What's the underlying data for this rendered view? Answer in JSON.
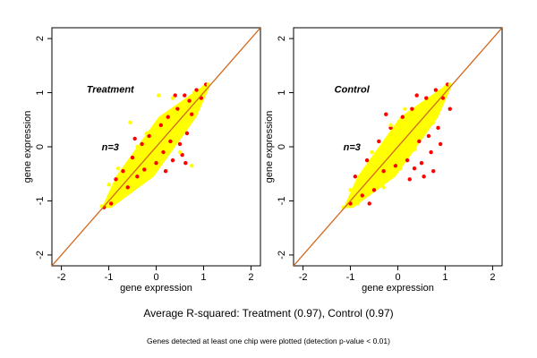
{
  "chart_data": [
    {
      "type": "scatter",
      "title": "",
      "annotation": "Treatment",
      "count_label": "n=3",
      "xlabel": "gene expression",
      "ylabel": "gene expression",
      "xlim": [
        -2.2,
        2.2
      ],
      "ylim": [
        -2.2,
        2.2
      ],
      "xticks": [
        -2,
        -1,
        0,
        1,
        2
      ],
      "yticks": [
        -2,
        -1,
        0,
        1,
        2
      ],
      "grid": false,
      "reference_line": {
        "slope": 1,
        "intercept": 0,
        "color": "#d2691e"
      },
      "series": [
        {
          "color": "#ff0000",
          "points": [
            [
              -1.1,
              -1.12
            ],
            [
              -0.85,
              -0.6
            ],
            [
              -0.7,
              -0.45
            ],
            [
              -0.6,
              -0.75
            ],
            [
              -0.5,
              -0.2
            ],
            [
              -0.4,
              -0.55
            ],
            [
              -0.3,
              0.05
            ],
            [
              -0.25,
              -0.42
            ],
            [
              -0.15,
              0.2
            ],
            [
              0,
              -0.3
            ],
            [
              0.1,
              0.4
            ],
            [
              0.15,
              -0.1
            ],
            [
              0.25,
              0.55
            ],
            [
              0.3,
              0.1
            ],
            [
              0.35,
              -0.25
            ],
            [
              0.45,
              0.7
            ],
            [
              0.5,
              0.05
            ],
            [
              0.55,
              -0.15
            ],
            [
              0.6,
              0.95
            ],
            [
              0.62,
              -0.3
            ],
            [
              0.7,
              0.85
            ],
            [
              0.75,
              0.6
            ],
            [
              0.85,
              1.05
            ],
            [
              0.95,
              0.9
            ],
            [
              1.05,
              1.15
            ],
            [
              -0.95,
              -1.05
            ],
            [
              -0.45,
              0.15
            ],
            [
              0.2,
              -0.45
            ],
            [
              0.4,
              0.95
            ],
            [
              0.65,
              0.25
            ]
          ]
        },
        {
          "color": "#ffff00",
          "points": [
            [
              -1.15,
              -1.1
            ],
            [
              -1,
              -0.7
            ],
            [
              -0.9,
              -0.95
            ],
            [
              -0.8,
              -0.4
            ],
            [
              -0.75,
              -0.85
            ],
            [
              -0.6,
              -0.35
            ],
            [
              -0.5,
              -0.7
            ],
            [
              -0.4,
              0
            ],
            [
              -0.35,
              -0.45
            ],
            [
              -0.2,
              0.25
            ],
            [
              -0.1,
              -0.2
            ],
            [
              0,
              0.3
            ],
            [
              0.1,
              -0.15
            ],
            [
              0.2,
              0.45
            ],
            [
              0.3,
              0
            ],
            [
              0.4,
              0.65
            ],
            [
              0.5,
              0.3
            ],
            [
              0.6,
              0.8
            ],
            [
              0.7,
              0.5
            ],
            [
              0.8,
              1
            ],
            [
              0.9,
              0.8
            ],
            [
              1,
              1.1
            ],
            [
              1.1,
              1.15
            ],
            [
              0.05,
              0.95
            ],
            [
              -0.55,
              0.45
            ],
            [
              -0.2,
              -0.6
            ],
            [
              0.75,
              -0.35
            ],
            [
              0.5,
              -0.1
            ],
            [
              -0.05,
              -0.5
            ],
            [
              0.35,
              0.9
            ]
          ]
        }
      ]
    },
    {
      "type": "scatter",
      "title": "",
      "annotation": "Control",
      "count_label": "n=3",
      "xlabel": "gene expression",
      "ylabel": "gene expression",
      "xlim": [
        -2.2,
        2.2
      ],
      "ylim": [
        -2.2,
        2.2
      ],
      "xticks": [
        -2,
        -1,
        0,
        1,
        2
      ],
      "yticks": [
        -2,
        -1,
        0,
        1,
        2
      ],
      "grid": false,
      "reference_line": {
        "slope": 1,
        "intercept": 0,
        "color": "#d2691e"
      },
      "series": [
        {
          "color": "#ff0000",
          "points": [
            [
              -1,
              -1.05
            ],
            [
              -0.9,
              -0.55
            ],
            [
              -0.75,
              -0.9
            ],
            [
              -0.65,
              -0.25
            ],
            [
              -0.5,
              -0.8
            ],
            [
              -0.4,
              0.1
            ],
            [
              -0.3,
              -0.45
            ],
            [
              -0.15,
              0.35
            ],
            [
              -0.05,
              -0.35
            ],
            [
              0.1,
              0.55
            ],
            [
              0.2,
              -0.25
            ],
            [
              0.3,
              0.7
            ],
            [
              0.35,
              -0.4
            ],
            [
              0.45,
              0.1
            ],
            [
              0.5,
              -0.3
            ],
            [
              0.55,
              -0.55
            ],
            [
              0.6,
              0.9
            ],
            [
              0.65,
              0.2
            ],
            [
              0.7,
              -0.1
            ],
            [
              0.75,
              -0.45
            ],
            [
              0.8,
              1.05
            ],
            [
              0.85,
              0.35
            ],
            [
              0.95,
              0.9
            ],
            [
              1.05,
              1.15
            ],
            [
              0.4,
              0.95
            ],
            [
              -0.25,
              0.6
            ],
            [
              -0.6,
              -1.05
            ],
            [
              0.25,
              -0.6
            ],
            [
              0.9,
              0.05
            ],
            [
              1.1,
              0.7
            ]
          ]
        },
        {
          "color": "#ffff00",
          "points": [
            [
              -1.15,
              -1.12
            ],
            [
              -1,
              -0.8
            ],
            [
              -0.85,
              -1.05
            ],
            [
              -0.7,
              -0.5
            ],
            [
              -0.6,
              -0.85
            ],
            [
              -0.45,
              -0.25
            ],
            [
              -0.35,
              -0.6
            ],
            [
              -0.2,
              0.1
            ],
            [
              -0.1,
              -0.3
            ],
            [
              0,
              0.3
            ],
            [
              0.1,
              -0.1
            ],
            [
              0.2,
              0.45
            ],
            [
              0.3,
              0.1
            ],
            [
              0.4,
              0.6
            ],
            [
              0.5,
              0.35
            ],
            [
              0.6,
              0.75
            ],
            [
              0.7,
              0.55
            ],
            [
              0.8,
              0.95
            ],
            [
              0.9,
              0.85
            ],
            [
              1,
              1.1
            ],
            [
              1.1,
              1.15
            ],
            [
              -0.55,
              -0.1
            ],
            [
              0.15,
              0.7
            ],
            [
              0.35,
              -0.05
            ],
            [
              -0.3,
              -0.75
            ],
            [
              0.65,
              0.4
            ],
            [
              0.75,
              0.45
            ],
            [
              -0.8,
              -0.65
            ],
            [
              0.05,
              -0.4
            ],
            [
              -0.15,
              0.4
            ]
          ]
        }
      ]
    }
  ],
  "caption": "Average R-squared: Treatment (0.97), Control (0.97)",
  "footnote": "Genes detected at least one chip were plotted (detection p-value < 0.01)"
}
